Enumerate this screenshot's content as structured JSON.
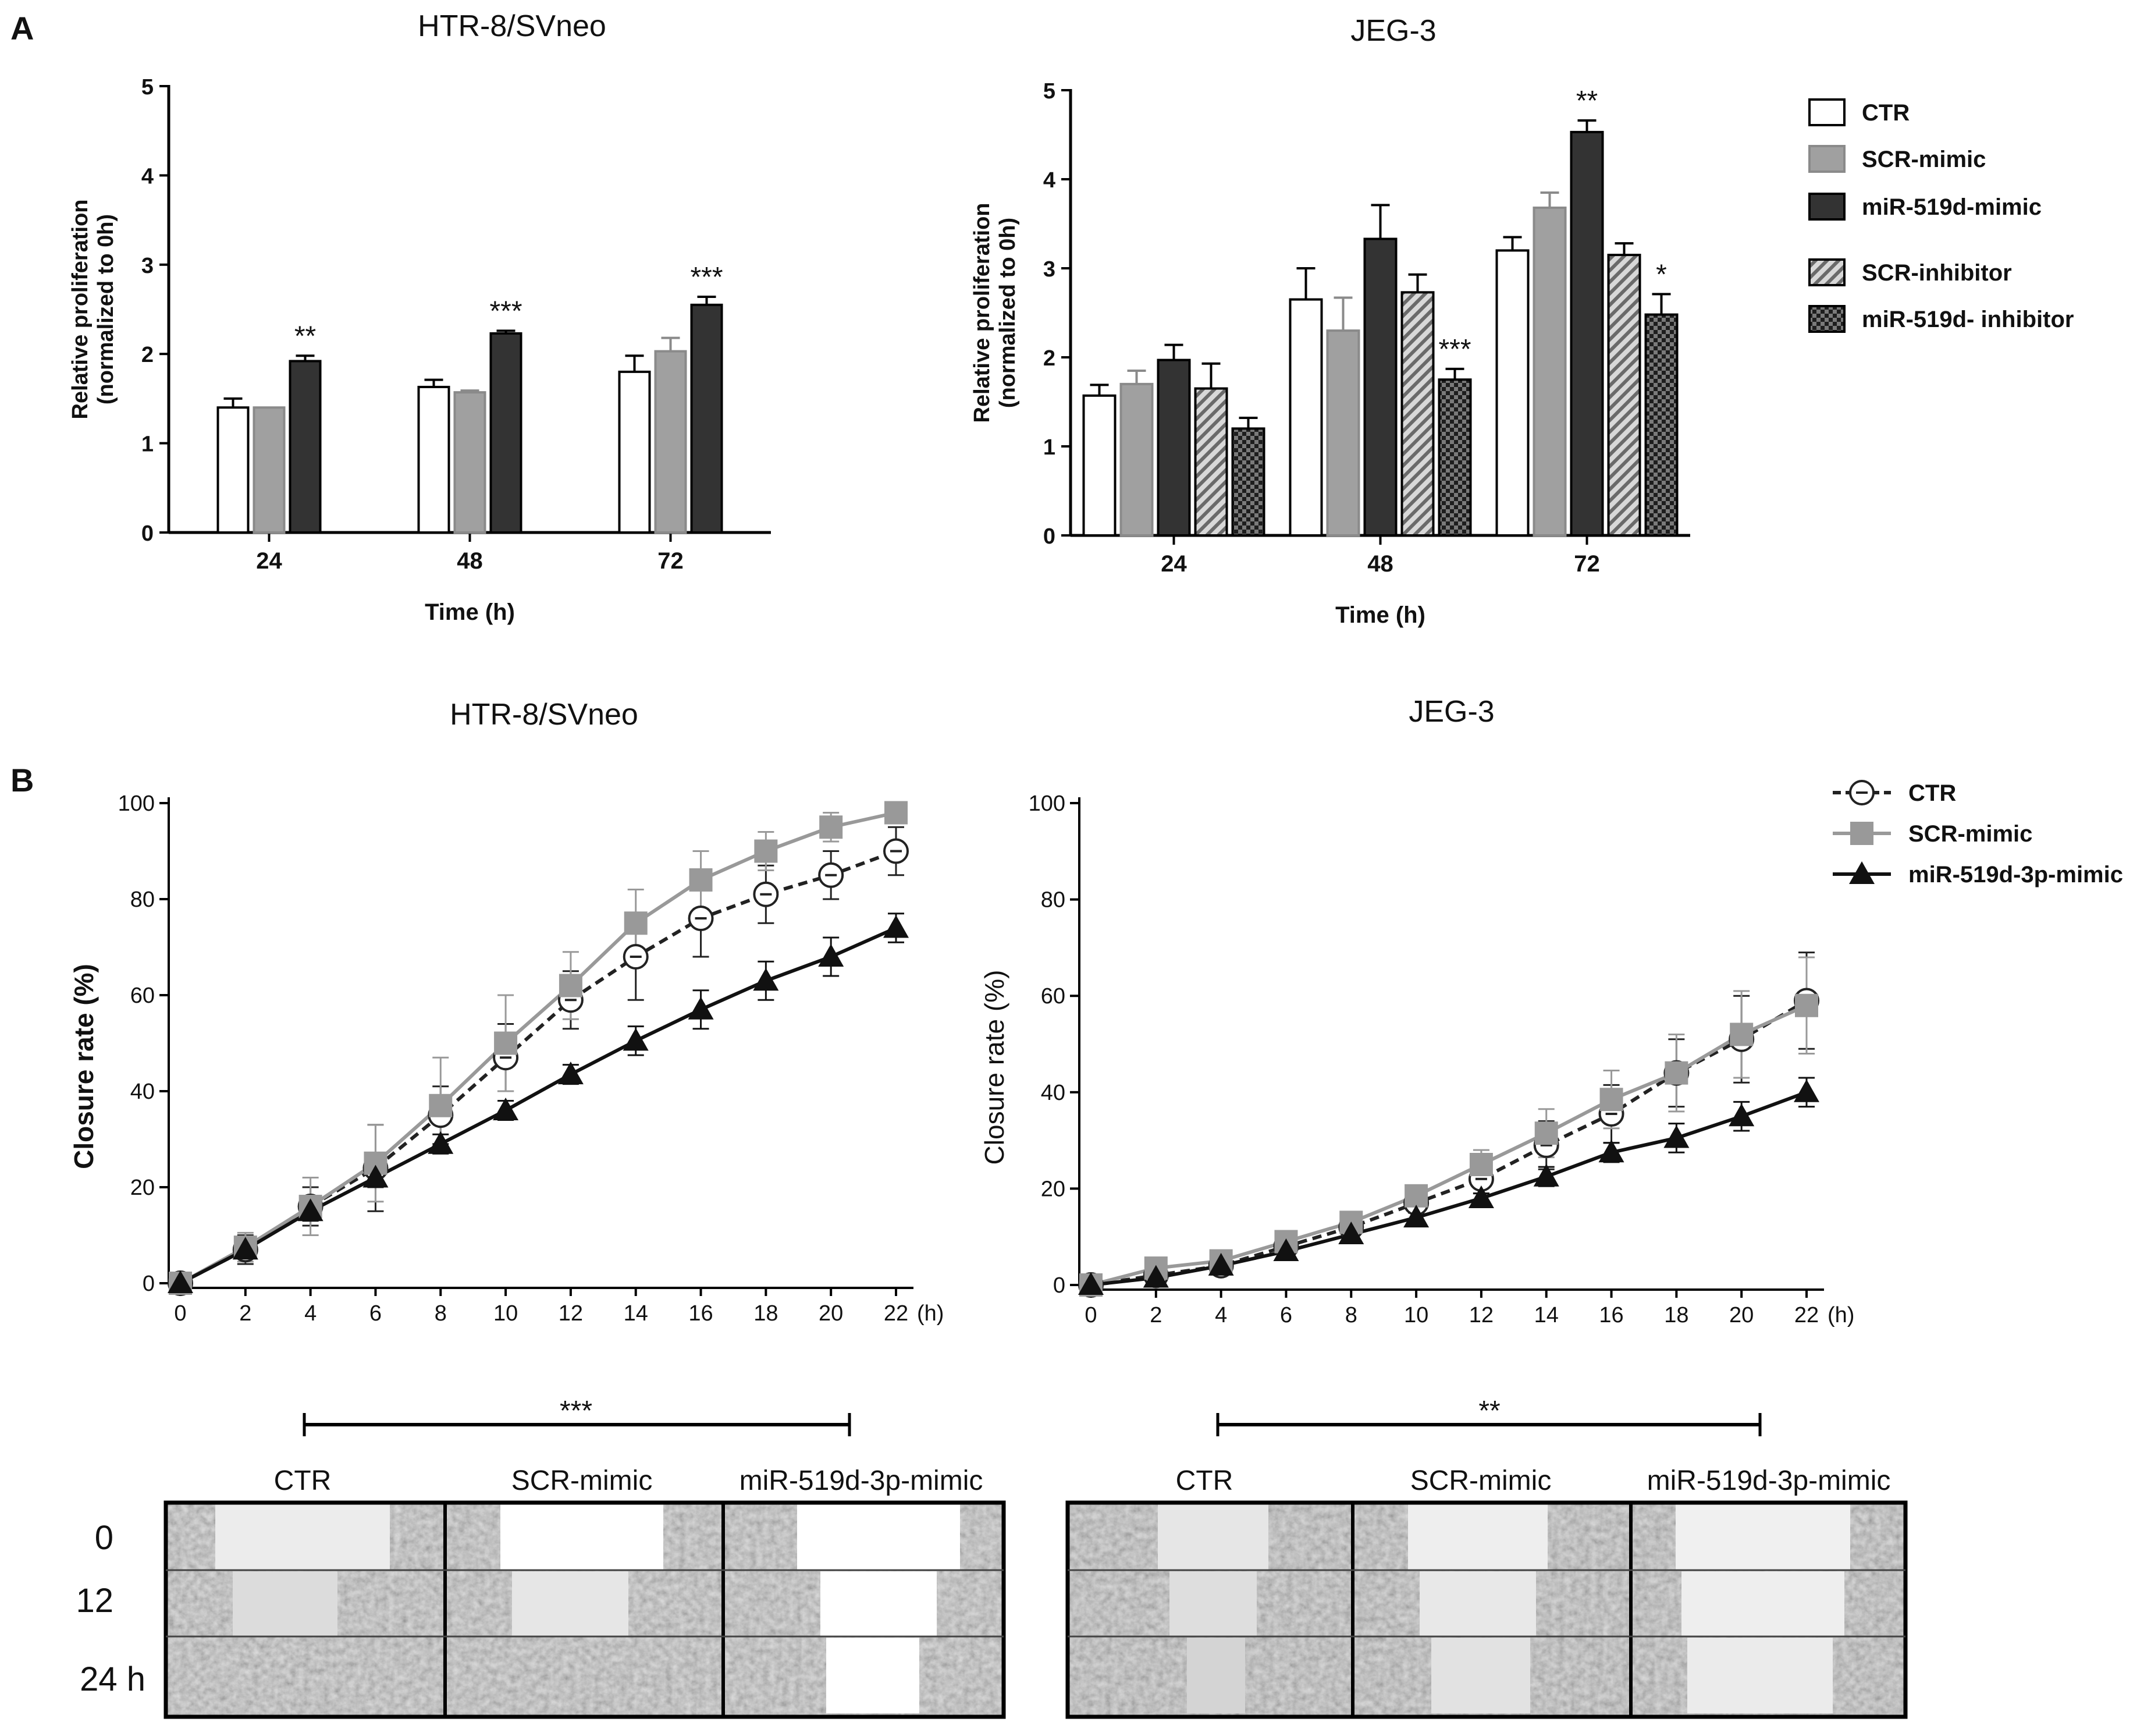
{
  "panel_labels": {
    "a": "A",
    "b": "B"
  },
  "colors": {
    "ctr": "#ffffff",
    "scr_mimic": "#a0a0a0",
    "mir_mimic": "#333333",
    "scr_inhibitor": "#888888",
    "mir_inhibitor": "#222222",
    "line_ctr": "#222222",
    "line_scr": "#999999",
    "line_mir": "#111111",
    "frame": "#000000"
  },
  "chart_data": [
    {
      "id": "a-htr",
      "type": "bar",
      "title": "HTR-8/SVneo",
      "xlabel": "Time (h)",
      "ylabel": "Relative proliferation (normalized to 0h)",
      "ylabel_line1": "Relative proliferation",
      "ylabel_line2": "(normalized to 0h)",
      "ylim": [
        0,
        5
      ],
      "yticks": [
        "0",
        "1",
        "2",
        "3",
        "4",
        "5"
      ],
      "categories": [
        "24",
        "48",
        "72"
      ],
      "series": [
        {
          "name": "CTR",
          "values": [
            1.4,
            1.63,
            1.8
          ],
          "errors": [
            0.1,
            0.08,
            0.18
          ],
          "pattern": "white"
        },
        {
          "name": "SCR-mimic",
          "values": [
            1.4,
            1.57,
            2.03
          ],
          "errors": [
            0.0,
            0.02,
            0.15
          ],
          "pattern": "gray"
        },
        {
          "name": "miR-519d-mimic",
          "values": [
            1.92,
            2.23,
            2.55
          ],
          "errors": [
            0.06,
            0.03,
            0.09
          ],
          "pattern": "dark"
        }
      ],
      "significance": [
        {
          "category": "24",
          "series": "miR-519d-mimic",
          "label": "**"
        },
        {
          "category": "48",
          "series": "miR-519d-mimic",
          "label": "***"
        },
        {
          "category": "72",
          "series": "miR-519d-mimic",
          "label": "***"
        }
      ]
    },
    {
      "id": "a-jeg",
      "type": "bar",
      "title": "JEG-3",
      "xlabel": "Time (h)",
      "ylabel": "Relative proliferation (normalized to 0h)",
      "ylabel_line1": "Relative proliferation",
      "ylabel_line2": "(normalized to 0h)",
      "ylim": [
        0,
        5
      ],
      "yticks": [
        "0",
        "1",
        "2",
        "3",
        "4",
        "5"
      ],
      "categories": [
        "24",
        "48",
        "72"
      ],
      "legend_position": "right",
      "series": [
        {
          "name": "CTR",
          "values": [
            1.57,
            2.65,
            3.2
          ],
          "errors": [
            0.12,
            0.35,
            0.15
          ],
          "pattern": "white"
        },
        {
          "name": "SCR-mimic",
          "values": [
            1.7,
            2.3,
            3.68
          ],
          "errors": [
            0.15,
            0.37,
            0.17
          ],
          "pattern": "gray"
        },
        {
          "name": "miR-519d-mimic",
          "values": [
            1.97,
            3.33,
            4.53
          ],
          "errors": [
            0.17,
            0.38,
            0.13
          ],
          "pattern": "dark"
        },
        {
          "name": "SCR-inhibitor",
          "values": [
            1.65,
            2.73,
            3.15
          ],
          "errors": [
            0.28,
            0.2,
            0.13
          ],
          "pattern": "hatch"
        },
        {
          "name": "miR-519d- inhibitor",
          "values": [
            1.2,
            1.75,
            2.48
          ],
          "errors": [
            0.12,
            0.12,
            0.23
          ],
          "pattern": "check"
        }
      ],
      "significance": [
        {
          "category": "48",
          "series": "miR-519d- inhibitor",
          "label": "***"
        },
        {
          "category": "72",
          "series": "miR-519d-mimic",
          "label": "**"
        },
        {
          "category": "72",
          "series": "miR-519d- inhibitor",
          "label": "*"
        }
      ]
    },
    {
      "id": "b-htr",
      "type": "line",
      "title": "HTR-8/SVneo",
      "ylabel": "Closure rate (%)",
      "x_unit": "(h)",
      "xlim": [
        0,
        22
      ],
      "ylim": [
        0,
        100
      ],
      "x": [
        0,
        2,
        4,
        6,
        8,
        10,
        12,
        14,
        16,
        18,
        20,
        22
      ],
      "yticks": [
        "0",
        "20",
        "40",
        "60",
        "80",
        "100"
      ],
      "xticks": [
        "0",
        "2",
        "4",
        "6",
        "8",
        "10",
        "12",
        "14",
        "16",
        "18",
        "20",
        "22"
      ],
      "series": [
        {
          "name": "CTR",
          "style": "dashed-open-circle",
          "values": [
            0,
            7,
            16,
            24,
            35,
            47,
            59,
            68,
            76,
            81,
            85,
            90
          ],
          "errors": [
            0,
            3,
            4,
            9,
            6,
            7,
            6,
            9,
            8,
            6,
            5,
            5
          ]
        },
        {
          "name": "SCR-mimic",
          "style": "gray-square",
          "values": [
            0,
            7.5,
            16,
            25,
            37,
            50,
            62,
            75,
            84,
            90,
            95,
            98
          ],
          "errors": [
            0,
            3,
            6,
            8,
            10,
            10,
            7,
            7,
            6,
            4,
            3,
            1
          ]
        },
        {
          "name": "miR-519d-3p-mimic",
          "style": "black-triangle",
          "values": [
            0,
            7,
            15,
            22,
            29,
            36,
            43.5,
            50.5,
            57,
            63,
            68,
            74
          ],
          "errors": [
            0,
            1,
            2,
            2,
            2,
            2,
            2,
            3,
            4,
            4,
            4,
            3
          ]
        }
      ]
    },
    {
      "id": "b-jeg",
      "type": "line",
      "title": "JEG-3",
      "ylabel": "Closure rate (%)",
      "x_unit": "(h)",
      "xlim": [
        0,
        22
      ],
      "ylim": [
        0,
        100
      ],
      "x": [
        0,
        2,
        4,
        6,
        8,
        10,
        12,
        14,
        16,
        18,
        20,
        22
      ],
      "yticks": [
        "0",
        "20",
        "40",
        "60",
        "80",
        "100"
      ],
      "xticks": [
        "0",
        "2",
        "4",
        "6",
        "8",
        "10",
        "12",
        "14",
        "16",
        "18",
        "20",
        "22"
      ],
      "legend_position": "top-right",
      "series": [
        {
          "name": "CTR",
          "style": "dashed-open-circle",
          "values": [
            0,
            2,
            4,
            8,
            12,
            17,
            22,
            29,
            35.5,
            44,
            51,
            59
          ],
          "errors": [
            0,
            1,
            1,
            2,
            2,
            2,
            3,
            5,
            6,
            7,
            9,
            10
          ]
        },
        {
          "name": "SCR-mimic",
          "style": "gray-square",
          "values": [
            0,
            3.5,
            5,
            9,
            13,
            18.5,
            25,
            31.5,
            38.5,
            44,
            52,
            58
          ],
          "errors": [
            0,
            1,
            1,
            2,
            2,
            2,
            3,
            5,
            6,
            8,
            9,
            10
          ]
        },
        {
          "name": "miR-519d-3p-mimic",
          "style": "black-triangle",
          "values": [
            0,
            1.5,
            4,
            7,
            10.5,
            14,
            18,
            22.5,
            27.5,
            30.5,
            35,
            40
          ],
          "errors": [
            0,
            1,
            1,
            1,
            1,
            1,
            1,
            2,
            2,
            3,
            3,
            3
          ]
        }
      ]
    }
  ],
  "micrographs": {
    "htr": {
      "significance": "***",
      "columns": [
        "CTR",
        "SCR-mimic",
        "miR-519d-3p-mimic"
      ],
      "rows": [
        "0",
        "12",
        "24 h"
      ]
    },
    "jeg": {
      "significance": "**",
      "columns": [
        "CTR",
        "SCR-mimic",
        "miR-519d-3p-mimic"
      ]
    }
  }
}
